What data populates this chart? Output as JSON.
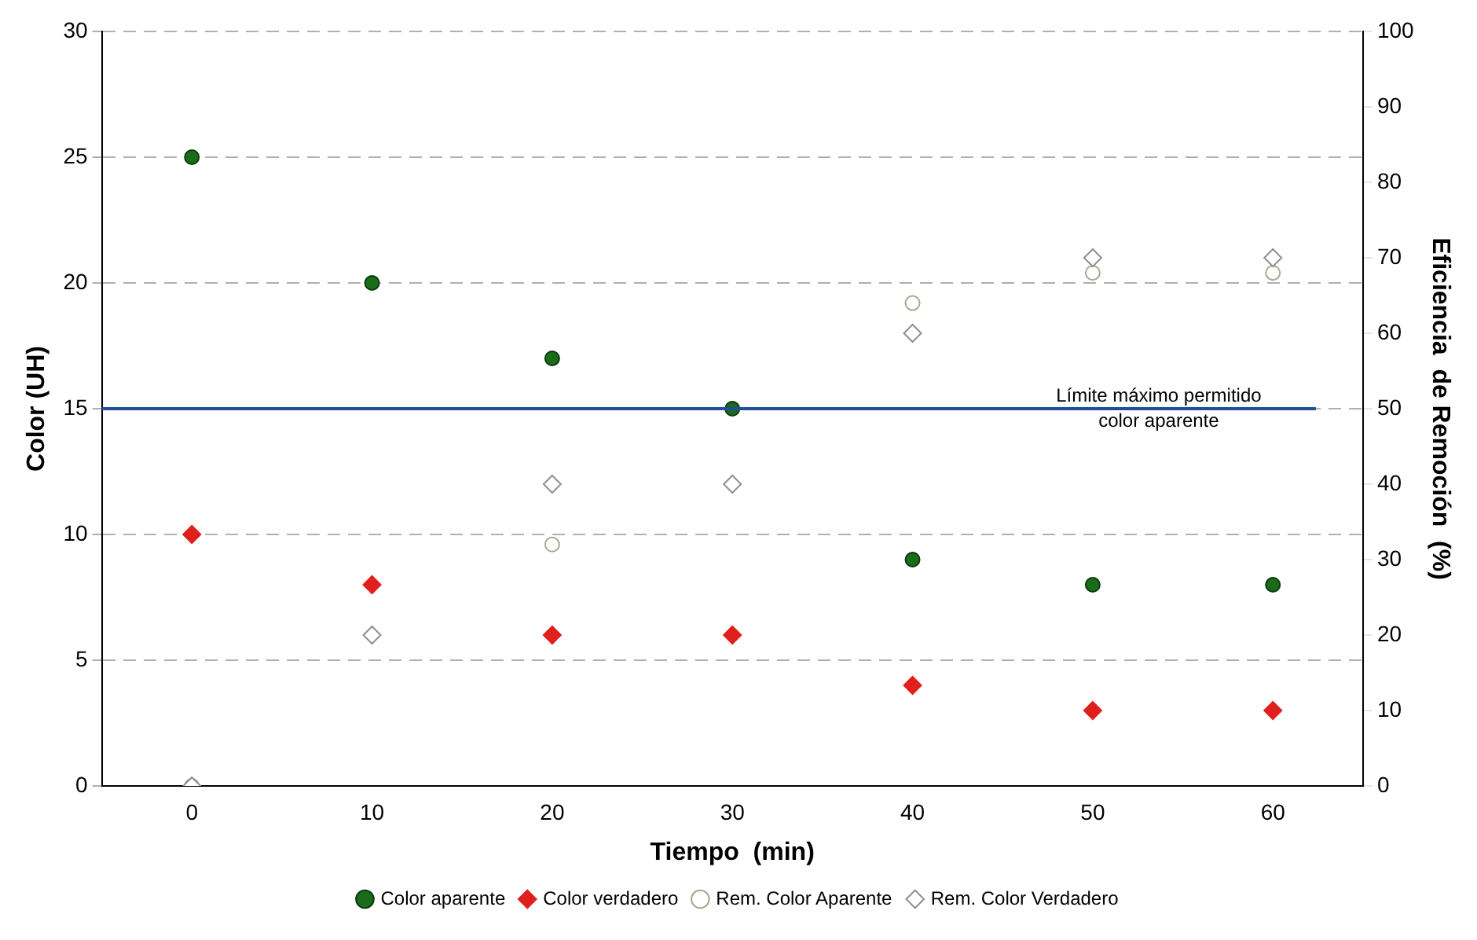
{
  "chart_data": {
    "type": "scatter",
    "xlabel": "Tiempo  (min)",
    "ylabel": "Color (UH)",
    "y2label": "Eficiencia  de Remoción  (%)",
    "categories": [
      "0",
      "10",
      "20",
      "30",
      "40",
      "50",
      "60"
    ],
    "ylim": [
      0,
      30
    ],
    "yticks": [
      0,
      5,
      10,
      15,
      20,
      25,
      30
    ],
    "y2lim": [
      0,
      100
    ],
    "y2ticks": [
      0,
      10,
      20,
      30,
      40,
      50,
      60,
      70,
      80,
      90,
      100
    ],
    "grid": "y",
    "legend": "bottom",
    "ref_lines": [
      {
        "axis": "y",
        "value": 15,
        "label": "Límite máximo permitido\ncolor aparente",
        "color": "#1f4e9c",
        "line_style": "solid"
      }
    ],
    "series": [
      {
        "name": "Color aparente",
        "color": "#1a6b1a",
        "marker": "circle",
        "values": [
          25,
          20,
          17,
          15,
          9,
          8,
          8
        ]
      },
      {
        "name": "Color verdadero",
        "color": "#e0201c",
        "marker": "diamond",
        "values": [
          10,
          8,
          6,
          6,
          4,
          3,
          3
        ]
      },
      {
        "name": "Rem. Color Aparente",
        "color": "#a8a890",
        "marker": "circle",
        "axis": "y2",
        "values": [
          0,
          null,
          32,
          null,
          64,
          68,
          68
        ]
      },
      {
        "name": "Rem. Color Verdadero",
        "color": "#909090",
        "marker": "diamond",
        "axis": "y2",
        "values": [
          0,
          20,
          40,
          40,
          60,
          70,
          70
        ]
      }
    ]
  }
}
